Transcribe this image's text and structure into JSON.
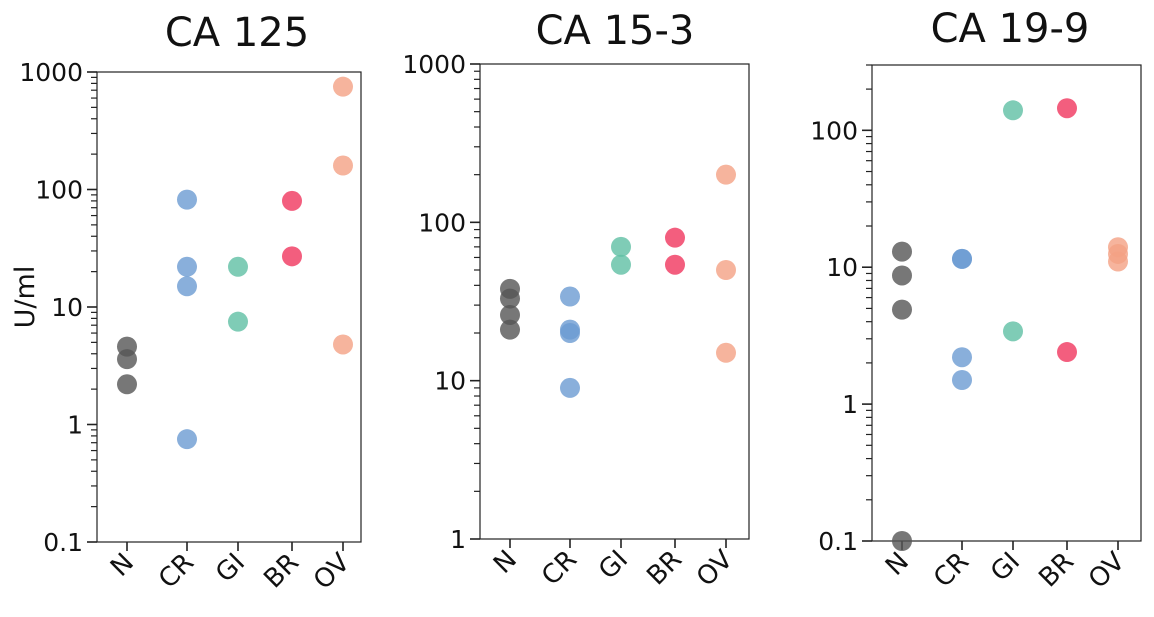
{
  "chart_data": [
    {
      "type": "scatter",
      "title": "CA 125",
      "ylabel": "U/ml",
      "yscale": "log",
      "ylim": [
        0.1,
        1000
      ],
      "yticks": [
        0.1,
        1,
        10,
        100,
        1000
      ],
      "ytick_labels": [
        "0.1",
        "1",
        "10",
        "100",
        "1000"
      ],
      "categories": [
        "N",
        "CR",
        "GI",
        "BR",
        "OV"
      ],
      "series": [
        {
          "category": "N",
          "color": "#555555",
          "values": [
            4.6,
            3.6,
            2.2
          ]
        },
        {
          "category": "CR",
          "color": "#6b9bd2",
          "values": [
            82,
            22,
            15,
            0.75
          ]
        },
        {
          "category": "GI",
          "color": "#5fbfa4",
          "values": [
            22,
            7.5
          ]
        },
        {
          "category": "BR",
          "color": "#f0365e",
          "values": [
            80,
            27
          ]
        },
        {
          "category": "OV",
          "color": "#f4a184",
          "values": [
            750,
            160,
            4.8
          ]
        }
      ]
    },
    {
      "type": "scatter",
      "title": "CA 15-3",
      "ylabel": "",
      "yscale": "log",
      "ylim": [
        1,
        1000
      ],
      "yticks": [
        1,
        10,
        100,
        1000
      ],
      "ytick_labels": [
        "1",
        "10",
        "100",
        "1000"
      ],
      "categories": [
        "N",
        "CR",
        "GI",
        "BR",
        "OV"
      ],
      "series": [
        {
          "category": "N",
          "color": "#555555",
          "values": [
            38,
            33,
            26,
            21
          ]
        },
        {
          "category": "CR",
          "color": "#6b9bd2",
          "values": [
            34,
            21,
            20,
            9
          ]
        },
        {
          "category": "GI",
          "color": "#5fbfa4",
          "values": [
            70,
            54
          ]
        },
        {
          "category": "BR",
          "color": "#f0365e",
          "values": [
            80,
            54
          ]
        },
        {
          "category": "OV",
          "color": "#f4a184",
          "values": [
            200,
            50,
            15
          ]
        }
      ]
    },
    {
      "type": "scatter",
      "title": "CA 19-9",
      "ylabel": "",
      "yscale": "log",
      "ylim": [
        0.1,
        300
      ],
      "yticks": [
        0.1,
        1,
        10,
        100
      ],
      "ytick_labels": [
        "0.1",
        "1",
        "10",
        "100"
      ],
      "categories": [
        "N",
        "CR",
        "GI",
        "BR",
        "OV"
      ],
      "series": [
        {
          "category": "N",
          "color": "#555555",
          "values": [
            13,
            8.7,
            4.9,
            0.1
          ]
        },
        {
          "category": "CR",
          "color": "#6b9bd2",
          "values": [
            11.5,
            11.5,
            2.2,
            1.5
          ]
        },
        {
          "category": "GI",
          "color": "#5fbfa4",
          "values": [
            140,
            3.4
          ]
        },
        {
          "category": "BR",
          "color": "#f0365e",
          "values": [
            145,
            2.4
          ]
        },
        {
          "category": "OV",
          "color": "#f4a184",
          "values": [
            14,
            12.5,
            11
          ]
        }
      ]
    }
  ]
}
